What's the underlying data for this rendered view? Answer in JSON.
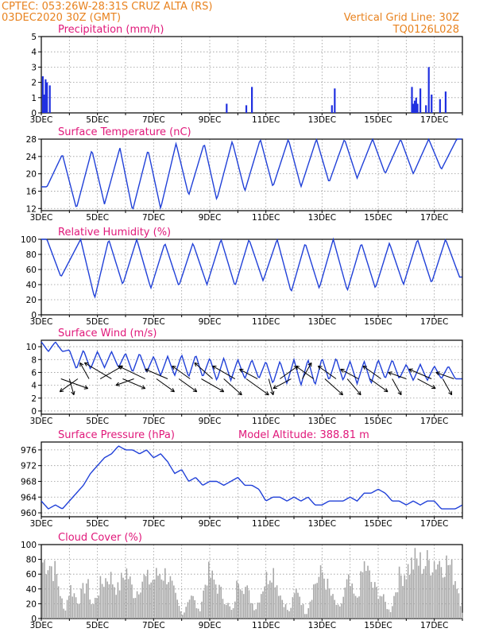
{
  "header": {
    "line1_left": "CPTEC:   053:26W-28:31S   CRUZ ALTA (RS)",
    "line2_left": "03DEC2020 30Z (GMT)",
    "line1_right": "Vertical Grid Line: 30Z",
    "line2_right": "TQ0126L028"
  },
  "x_labels": [
    "3DEC",
    "5DEC",
    "7DEC",
    "9DEC",
    "11DEC",
    "13DEC",
    "15DEC",
    "17DEC"
  ],
  "colors": {
    "line": "#2040d8",
    "bar": "#2030e0",
    "cloud": "#a8a8a8",
    "header": "#e8821e",
    "title": "#e0187a",
    "arrow": "#000000"
  },
  "chart_data": [
    {
      "type": "bar",
      "title": "Precipitation (mm/h)",
      "ylim": [
        0,
        5
      ],
      "yticks": [
        0,
        1,
        2,
        3,
        4,
        5
      ],
      "xlim_days": [
        3,
        18
      ],
      "x_days": [
        3.05,
        3.1,
        3.15,
        3.2,
        3.3,
        9.6,
        10.3,
        10.5,
        13.35,
        13.45,
        16.2,
        16.25,
        16.3,
        16.35,
        16.4,
        16.5,
        16.7,
        16.8,
        16.9,
        17.2,
        17.4
      ],
      "values": [
        2.4,
        1.2,
        2.2,
        2.0,
        1.8,
        0.6,
        0.5,
        1.7,
        0.5,
        1.6,
        1.7,
        0.6,
        0.8,
        1.0,
        0.6,
        1.6,
        0.5,
        3.0,
        1.2,
        0.9,
        1.4
      ]
    },
    {
      "type": "line",
      "title": "Surface Temperature (nC)",
      "ylim": [
        11.5,
        28
      ],
      "yticks": [
        12,
        16,
        20,
        24,
        28
      ],
      "peaks_days": [
        3.75,
        4.8,
        5.8,
        6.8,
        7.8,
        8.8,
        9.8,
        10.8,
        11.8,
        12.8,
        13.8,
        14.8,
        15.8,
        16.8,
        17.8
      ],
      "peak_values": [
        24.5,
        25.5,
        26,
        25.5,
        27,
        27,
        27.5,
        28,
        28,
        28,
        28,
        28,
        28,
        28,
        28
      ],
      "trough_values": [
        17,
        12,
        13,
        11.5,
        12,
        15,
        14,
        16,
        17,
        17,
        18,
        19,
        20,
        20,
        21
      ]
    },
    {
      "type": "line",
      "title": "Relative Humidity (%)",
      "ylim": [
        0,
        100
      ],
      "yticks": [
        0,
        20,
        40,
        60,
        80,
        100
      ],
      "peaks_days": [
        3.2,
        4.4,
        5.4,
        6.4,
        7.4,
        8.4,
        9.4,
        10.4,
        11.4,
        12.4,
        13.4,
        14.4,
        15.4,
        16.4,
        17.4
      ],
      "peak_values": [
        100,
        100,
        100,
        100,
        95,
        95,
        100,
        100,
        100,
        95,
        100,
        95,
        95,
        100,
        100
      ],
      "trough_values": [
        50,
        22,
        40,
        35,
        38,
        40,
        38,
        45,
        30,
        35,
        32,
        35,
        40,
        42,
        50
      ]
    },
    {
      "type": "line",
      "title": "Surface Wind (m/s)",
      "ylim": [
        -0.5,
        11
      ],
      "yticks": [
        0,
        2,
        4,
        6,
        8,
        10
      ],
      "mean_speed": [
        10,
        8,
        8,
        7.5,
        7,
        7,
        6.5,
        6.5,
        6,
        6,
        6.5,
        6,
        6.5,
        6,
        6
      ],
      "variation": [
        1.5,
        3,
        2.5,
        3,
        3,
        3.5,
        3.5,
        3,
        3.5,
        4,
        3.5,
        3.5,
        3,
        2.5,
        2
      ],
      "vectors": [
        {
          "day": 3.7,
          "u": 3,
          "v": -1.5
        },
        {
          "day": 4.0,
          "u": 0.5,
          "v": -2.5
        },
        {
          "day": 4.3,
          "u": -2,
          "v": -2
        },
        {
          "day": 4.7,
          "u": -1,
          "v": 2.5
        },
        {
          "day": 5.1,
          "u": 2.5,
          "v": 2
        },
        {
          "day": 5.5,
          "u": -3,
          "v": 2.5
        },
        {
          "day": 5.9,
          "u": 2.5,
          "v": -1.5
        },
        {
          "day": 6.3,
          "u": -2,
          "v": -1
        },
        {
          "day": 6.7,
          "u": -3,
          "v": 2
        },
        {
          "day": 7.1,
          "u": 2,
          "v": -2
        },
        {
          "day": 7.5,
          "u": -2.5,
          "v": 1.5
        },
        {
          "day": 7.9,
          "u": 2,
          "v": -2
        },
        {
          "day": 8.3,
          "u": -2,
          "v": 2
        },
        {
          "day": 8.7,
          "u": 2.5,
          "v": -2
        },
        {
          "day": 9.1,
          "u": -2,
          "v": 2.5
        },
        {
          "day": 9.5,
          "u": 2,
          "v": -2.5
        },
        {
          "day": 9.9,
          "u": -2.5,
          "v": 2
        },
        {
          "day": 10.3,
          "u": 2.5,
          "v": -2.5
        },
        {
          "day": 10.7,
          "u": -2,
          "v": 1.5
        },
        {
          "day": 11.1,
          "u": 0.5,
          "v": -2.5
        },
        {
          "day": 11.5,
          "u": 2,
          "v": 2
        },
        {
          "day": 11.9,
          "u": -2,
          "v": -1.5
        },
        {
          "day": 12.3,
          "u": 1,
          "v": 2.5
        },
        {
          "day": 12.7,
          "u": -2,
          "v": 2
        },
        {
          "day": 13.1,
          "u": 2,
          "v": -2.5
        },
        {
          "day": 13.5,
          "u": -2,
          "v": 2
        },
        {
          "day": 13.9,
          "u": 1.5,
          "v": -2.5
        },
        {
          "day": 14.3,
          "u": -2,
          "v": 1.5
        },
        {
          "day": 14.7,
          "u": 2,
          "v": -2
        },
        {
          "day": 15.1,
          "u": -2,
          "v": 2
        },
        {
          "day": 15.5,
          "u": 1,
          "v": -2.5
        },
        {
          "day": 16.0,
          "u": -2,
          "v": 1
        },
        {
          "day": 16.4,
          "u": 2,
          "v": -1.5
        },
        {
          "day": 16.9,
          "u": -2.5,
          "v": 1.5
        },
        {
          "day": 17.3,
          "u": 1,
          "v": -2.5
        },
        {
          "day": 17.7,
          "u": -2,
          "v": 1
        }
      ]
    },
    {
      "type": "line",
      "title": "Surface Pressure (hPa)",
      "subtitle": "Model Altitude: 388.81 m",
      "ylim": [
        959,
        978
      ],
      "yticks": [
        960,
        964,
        968,
        972,
        976
      ],
      "x_days": [
        3,
        3.25,
        3.5,
        3.75,
        4,
        4.25,
        4.5,
        4.75,
        5,
        5.25,
        5.5,
        5.75,
        6,
        6.25,
        6.5,
        6.75,
        7,
        7.25,
        7.5,
        7.75,
        8,
        8.25,
        8.5,
        8.75,
        9,
        9.25,
        9.5,
        9.75,
        10,
        10.25,
        10.5,
        10.75,
        11,
        11.25,
        11.5,
        11.75,
        12,
        12.25,
        12.5,
        12.75,
        13,
        13.25,
        13.5,
        13.75,
        14,
        14.25,
        14.5,
        14.75,
        15,
        15.25,
        15.5,
        15.75,
        16,
        16.25,
        16.5,
        16.75,
        17,
        17.25,
        17.5,
        17.75,
        18
      ],
      "values": [
        963,
        961,
        962,
        961,
        963,
        965,
        967,
        970,
        972,
        974,
        975,
        977,
        976,
        976,
        975,
        976,
        974,
        975,
        973,
        970,
        971,
        968,
        969,
        967,
        968,
        968,
        967,
        968,
        969,
        967,
        967,
        966,
        963,
        964,
        964,
        963,
        964,
        963,
        964,
        962,
        962,
        963,
        963,
        963,
        964,
        963,
        965,
        965,
        966,
        965,
        963,
        963,
        962,
        963,
        962,
        963,
        963,
        961,
        961,
        961,
        962
      ]
    },
    {
      "type": "bar",
      "title": "Cloud Cover (%)",
      "ylim": [
        0,
        100
      ],
      "yticks": [
        0,
        20,
        40,
        60,
        80,
        100
      ],
      "envelope_days": [
        3,
        3.2,
        3.5,
        3.8,
        4.0,
        4.3,
        4.6,
        4.8,
        5.1,
        5.4,
        5.7,
        6.0,
        6.3,
        6.6,
        6.9,
        7.2,
        7.5,
        7.8,
        8.0,
        8.3,
        8.6,
        8.9,
        9.2,
        9.5,
        9.8,
        10.0,
        10.3,
        10.6,
        10.9,
        11.2,
        11.5,
        11.8,
        12.1,
        12.4,
        12.7,
        13.0,
        13.3,
        13.6,
        13.9,
        14.2,
        14.5,
        14.8,
        15.1,
        15.4,
        15.7,
        16.0,
        16.3,
        16.6,
        16.9,
        17.2,
        17.5,
        17.8,
        18
      ],
      "envelope_values": [
        98,
        100,
        80,
        10,
        55,
        30,
        65,
        20,
        60,
        75,
        50,
        85,
        40,
        70,
        65,
        80,
        75,
        30,
        5,
        45,
        10,
        80,
        60,
        35,
        10,
        75,
        50,
        15,
        60,
        90,
        40,
        10,
        55,
        5,
        60,
        80,
        40,
        15,
        65,
        30,
        95,
        55,
        40,
        10,
        70,
        85,
        100,
        95,
        100,
        100,
        95,
        60,
        5
      ]
    }
  ]
}
